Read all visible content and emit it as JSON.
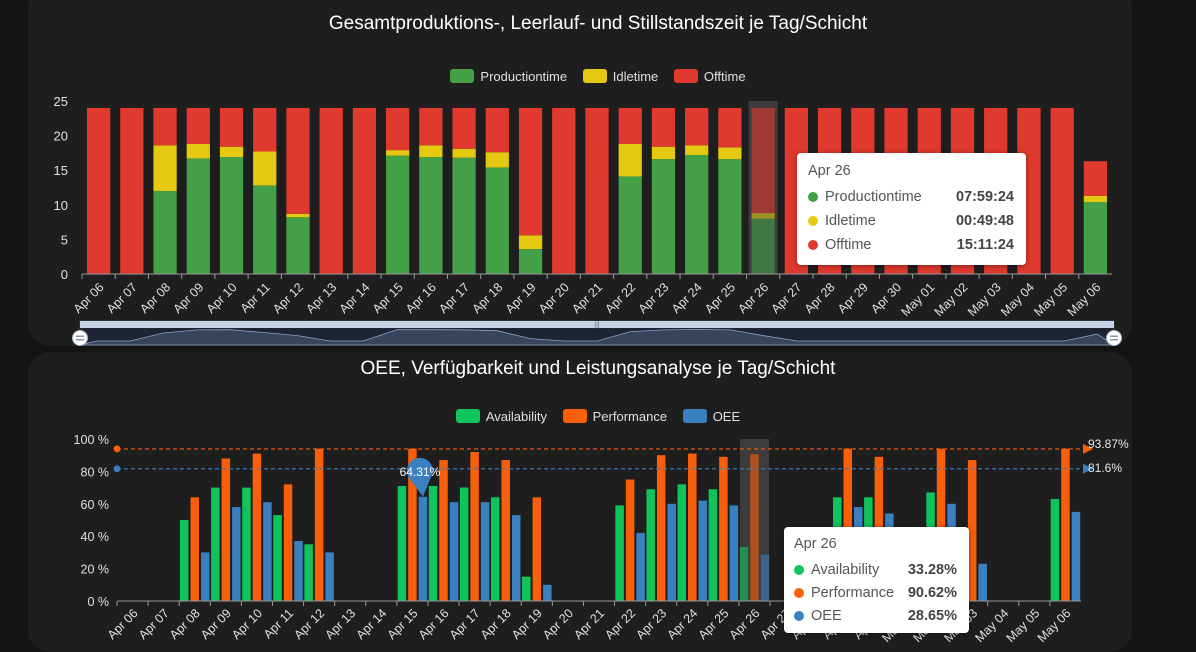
{
  "colors": {
    "production": "#43a047",
    "idle": "#e5c810",
    "off": "#e0392d",
    "availability": "#10c45c",
    "performance": "#f75f0b",
    "oee": "#3a7fbf"
  },
  "chart_data": [
    {
      "type": "bar",
      "stacked": true,
      "title": "Gesamtproduktions-, Leerlauf- und Stillstandszeit je Tag/Schicht",
      "legend_position": "top-center",
      "categories": [
        "Apr 06",
        "Apr 07",
        "Apr 08",
        "Apr 09",
        "Apr 10",
        "Apr 11",
        "Apr 12",
        "Apr 13",
        "Apr 14",
        "Apr 15",
        "Apr 16",
        "Apr 17",
        "Apr 18",
        "Apr 19",
        "Apr 20",
        "Apr 21",
        "Apr 22",
        "Apr 23",
        "Apr 24",
        "Apr 25",
        "Apr 26",
        "Apr 27",
        "Apr 28",
        "Apr 29",
        "Apr 30",
        "May 01",
        "May 02",
        "May 03",
        "May 04",
        "May 05",
        "May 06"
      ],
      "series": [
        {
          "name": "Productiontime",
          "values": [
            0,
            0,
            12,
            16.7,
            16.9,
            12.8,
            8.2,
            0,
            0,
            17.1,
            16.9,
            16.8,
            15.4,
            3.6,
            0,
            0,
            14.1,
            16.6,
            17.2,
            16.6,
            8,
            0,
            0,
            0,
            0,
            0,
            0,
            0,
            0,
            0,
            10.4
          ]
        },
        {
          "name": "Idletime",
          "values": [
            0,
            0,
            6.6,
            2.1,
            1.5,
            4.9,
            0.5,
            0,
            0,
            0.8,
            1.7,
            1.3,
            2.2,
            2,
            0,
            0,
            4.7,
            1.8,
            1.4,
            1.7,
            0.8,
            0,
            0,
            0,
            0,
            0,
            0,
            0,
            0,
            0,
            0.9
          ]
        },
        {
          "name": "Offtime",
          "values": [
            24,
            24,
            5.4,
            5.2,
            5.6,
            6.3,
            15.3,
            24,
            24,
            6.1,
            5.4,
            5.9,
            6.4,
            18.4,
            24,
            24,
            5.2,
            5.6,
            5.4,
            5.7,
            15.2,
            24,
            24,
            24,
            24,
            24,
            24,
            24,
            24,
            24,
            5
          ]
        }
      ],
      "ylim": [
        0,
        25
      ],
      "yticks": [
        0,
        5,
        10,
        15,
        20,
        25
      ],
      "grid": false,
      "highlight": "Apr 26",
      "tooltip": {
        "title": "Apr 26",
        "rows": [
          {
            "name": "Productiontime",
            "value": "07:59:24"
          },
          {
            "name": "Idletime",
            "value": "00:49:48"
          },
          {
            "name": "Offtime",
            "value": "15:11:24"
          }
        ]
      }
    },
    {
      "type": "bar",
      "title": "OEE, Verfügbarkeit und Leistungsanalyse je Tag/Schicht",
      "legend_position": "top-center",
      "categories": [
        "Apr 06",
        "Apr 07",
        "Apr 08",
        "Apr 09",
        "Apr 10",
        "Apr 11",
        "Apr 12",
        "Apr 13",
        "Apr 14",
        "Apr 15",
        "Apr 16",
        "Apr 17",
        "Apr 18",
        "Apr 19",
        "Apr 20",
        "Apr 21",
        "Apr 22",
        "Apr 23",
        "Apr 24",
        "Apr 25",
        "Apr 26",
        "Apr 27",
        "Apr 28",
        "Apr 29",
        "Apr 30",
        "May 01",
        "May 02",
        "May 03",
        "May 04",
        "May 05",
        "May 06"
      ],
      "series": [
        {
          "name": "Availability",
          "values": [
            0,
            0,
            50,
            70,
            70,
            53,
            35,
            0,
            0,
            71,
            71,
            70,
            64,
            15,
            0,
            0,
            59,
            69,
            72,
            69,
            33.28,
            0,
            0,
            64,
            64,
            0,
            67,
            0,
            0,
            0,
            63
          ]
        },
        {
          "name": "Performance",
          "values": [
            0,
            0,
            64,
            88,
            91,
            72,
            94,
            0,
            0,
            94,
            87,
            92,
            87,
            64,
            0,
            0,
            75,
            90,
            91,
            89,
            90.62,
            0,
            0,
            94,
            89,
            0,
            94,
            87,
            0,
            0,
            94
          ]
        },
        {
          "name": "OEE",
          "values": [
            0,
            0,
            30,
            58,
            61,
            37,
            30,
            0,
            0,
            64.31,
            61,
            61,
            53,
            10,
            0,
            0,
            42,
            60,
            62,
            59,
            28.65,
            0,
            0,
            58,
            54,
            0,
            60,
            23,
            0,
            0,
            55
          ]
        }
      ],
      "ylim": [
        0,
        100
      ],
      "yticks": [
        "0 %",
        "20 %",
        "40 %",
        "60 %",
        "80 %",
        "100 %"
      ],
      "markLines": [
        {
          "series": "Performance",
          "value": 93.87,
          "label": "93.87%"
        },
        {
          "series": "OEE",
          "value": 81.6,
          "label": "81.6%"
        }
      ],
      "markPoint": {
        "category": "Apr 15",
        "series": "OEE",
        "label": "64.31%"
      },
      "highlight": "Apr 26",
      "tooltip": {
        "title": "Apr 26",
        "rows": [
          {
            "name": "Availability",
            "value": "33.28%"
          },
          {
            "name": "Performance",
            "value": "90.62%"
          },
          {
            "name": "OEE",
            "value": "28.65%"
          }
        ]
      }
    }
  ]
}
